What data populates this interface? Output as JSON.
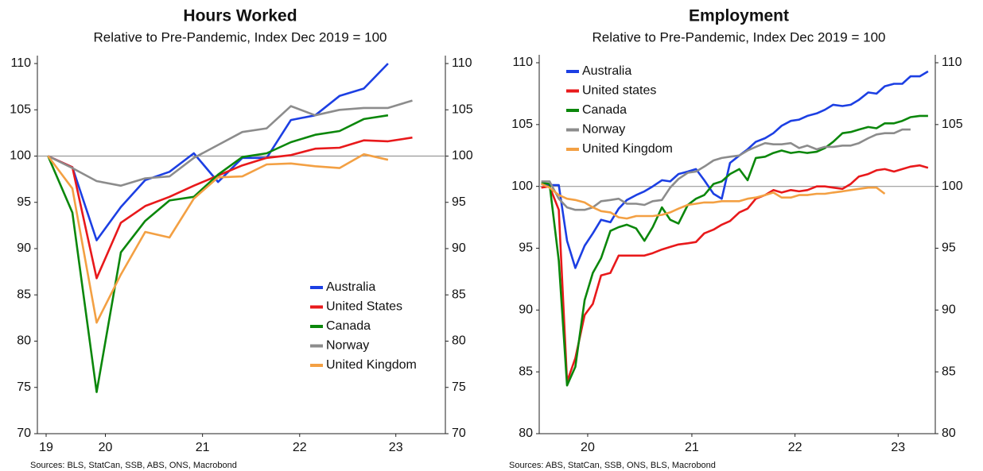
{
  "chart_data": [
    {
      "type": "line",
      "title": "Hours Worked",
      "subtitle": "Relative to Pre-Pandemic, Index Dec 2019 = 100",
      "source": "Sources: BLS, StatCan, SSB, ABS, ONS, Macrobond",
      "x": [
        2019.92,
        2020.17,
        2020.42,
        2020.67,
        2020.92,
        2021.17,
        2021.42,
        2021.67,
        2021.92,
        2022.17,
        2022.42,
        2022.67,
        2022.92,
        2023.17,
        2023.42,
        2023.67
      ],
      "xlim": [
        2019.81,
        2024.01
      ],
      "xticks": [
        {
          "value": 2019.9,
          "label": "19"
        },
        {
          "value": 2020.51,
          "label": "20"
        },
        {
          "value": 2021.51,
          "label": "21"
        },
        {
          "value": 2022.51,
          "label": "22"
        },
        {
          "value": 2023.5,
          "label": "23"
        }
      ],
      "ylim": [
        70,
        110
      ],
      "yticks": [
        70,
        75,
        80,
        85,
        90,
        95,
        100,
        105,
        110
      ],
      "y2lim": [
        70,
        110
      ],
      "y2ticks": [
        70,
        75,
        80,
        85,
        90,
        95,
        100,
        105,
        110
      ],
      "reference_line": 100,
      "legend": "lower right",
      "series": [
        {
          "name": "Australia",
          "color": "#1c3fe3",
          "values": [
            100,
            98.8,
            90.9,
            94.5,
            97.4,
            98.3,
            100.3,
            97.2,
            99.8,
            99.8,
            103.9,
            104.4,
            106.5,
            107.3,
            110.0,
            null
          ]
        },
        {
          "name": "United States",
          "color": "#e8191b",
          "values": [
            100,
            98.8,
            86.8,
            92.8,
            94.6,
            95.6,
            96.8,
            97.9,
            99.0,
            99.8,
            100.1,
            100.8,
            100.9,
            101.7,
            101.6,
            102.0
          ]
        },
        {
          "name": "Canada",
          "color": "#0b870b",
          "values": [
            100,
            93.9,
            74.5,
            89.6,
            93.0,
            95.2,
            95.6,
            98.0,
            99.9,
            100.3,
            101.5,
            102.3,
            102.7,
            104.0,
            104.4,
            null
          ]
        },
        {
          "name": "Norway",
          "color": "#8c8c8c",
          "values": [
            100,
            98.7,
            97.3,
            96.8,
            97.6,
            97.8,
            99.8,
            101.2,
            102.6,
            103.0,
            105.4,
            104.4,
            105.0,
            105.2,
            105.2,
            106.0
          ]
        },
        {
          "name": "United Kingdom",
          "color": "#f3a043",
          "values": [
            100,
            96.5,
            82.0,
            87.2,
            91.8,
            91.2,
            95.4,
            97.7,
            97.8,
            99.1,
            99.2,
            98.9,
            98.7,
            100.2,
            99.6,
            null
          ]
        }
      ]
    },
    {
      "type": "line",
      "title": "Employment",
      "subtitle": "Relative to Pre-Pandemic, Index Dec 2019 = 100",
      "source": "Sources: ABS, StatCan, SSB, ONS, BLS, Macrobond",
      "x": [
        2019.96,
        2020.04,
        2020.13,
        2020.21,
        2020.29,
        2020.38,
        2020.46,
        2020.54,
        2020.63,
        2020.71,
        2020.79,
        2020.88,
        2020.96,
        2021.04,
        2021.13,
        2021.21,
        2021.29,
        2021.38,
        2021.46,
        2021.54,
        2021.63,
        2021.71,
        2021.79,
        2021.88,
        2021.96,
        2022.04,
        2022.13,
        2022.21,
        2022.29,
        2022.38,
        2022.46,
        2022.54,
        2022.63,
        2022.71,
        2022.79,
        2022.88,
        2022.96,
        2023.04,
        2023.13,
        2023.21,
        2023.29,
        2023.38,
        2023.46,
        2023.54,
        2023.63,
        2023.71
      ],
      "xlim": [
        2019.94,
        2023.78
      ],
      "xticks": [
        {
          "value": 2020.41,
          "label": "20"
        },
        {
          "value": 2021.42,
          "label": "21"
        },
        {
          "value": 2022.42,
          "label": "22"
        },
        {
          "value": 2023.42,
          "label": "23"
        }
      ],
      "ylim": [
        80,
        110
      ],
      "yticks": [
        80,
        85,
        90,
        95,
        100,
        105,
        110
      ],
      "y2lim": [
        80,
        110
      ],
      "y2ticks": [
        80,
        85,
        90,
        95,
        100,
        105,
        110
      ],
      "reference_line": 100,
      "legend": "upper left",
      "series": [
        {
          "name": "Australia",
          "color": "#1c3fe3",
          "values": [
            100.2,
            100.1,
            100.1,
            95.6,
            93.4,
            95.2,
            96.2,
            97.3,
            97.1,
            98.2,
            98.9,
            99.3,
            99.6,
            100.0,
            100.5,
            100.4,
            101.0,
            101.2,
            101.4,
            100.5,
            99.4,
            99.0,
            101.9,
            102.5,
            103.0,
            103.6,
            103.9,
            104.3,
            104.9,
            105.3,
            105.4,
            105.7,
            105.9,
            106.2,
            106.6,
            106.5,
            106.6,
            107.0,
            107.6,
            107.5,
            108.1,
            108.3,
            108.3,
            108.9,
            108.9,
            109.3
          ]
        },
        {
          "name": "United states",
          "color": "#e8191b",
          "values": [
            99.9,
            100.0,
            98.1,
            84.2,
            86.1,
            89.6,
            90.5,
            92.8,
            93.0,
            94.4,
            94.4,
            94.4,
            94.4,
            94.6,
            94.9,
            95.1,
            95.3,
            95.4,
            95.5,
            96.2,
            96.5,
            96.9,
            97.2,
            97.9,
            98.2,
            99.0,
            99.3,
            99.7,
            99.5,
            99.7,
            99.6,
            99.7,
            100.0,
            100.0,
            99.9,
            99.8,
            100.2,
            100.8,
            101.0,
            101.3,
            101.4,
            101.2,
            101.4,
            101.6,
            101.7,
            101.5
          ]
        },
        {
          "name": "Canada",
          "color": "#0b870b",
          "values": [
            100.3,
            100.2,
            94.0,
            83.9,
            85.4,
            90.8,
            93.0,
            94.2,
            96.4,
            96.7,
            96.9,
            96.6,
            95.6,
            96.7,
            98.3,
            97.3,
            97.0,
            98.5,
            99.0,
            99.3,
            100.2,
            100.4,
            101.0,
            101.4,
            100.5,
            102.3,
            102.4,
            102.7,
            102.9,
            102.7,
            102.8,
            102.7,
            102.8,
            103.1,
            103.6,
            104.3,
            104.4,
            104.6,
            104.8,
            104.7,
            105.1,
            105.1,
            105.3,
            105.6,
            105.7,
            105.7
          ]
        },
        {
          "name": "Norway",
          "color": "#8c8c8c",
          "values": [
            100.4,
            100.4,
            99.0,
            98.3,
            98.1,
            98.1,
            98.3,
            98.8,
            98.9,
            99.0,
            98.6,
            98.6,
            98.5,
            98.8,
            98.9,
            99.9,
            100.6,
            101.1,
            101.2,
            101.6,
            102.1,
            102.3,
            102.4,
            102.5,
            102.9,
            103.2,
            103.5,
            103.4,
            103.4,
            103.5,
            103.1,
            103.3,
            103.0,
            103.2,
            103.2,
            103.3,
            103.3,
            103.5,
            103.9,
            104.2,
            104.3,
            104.3,
            104.6,
            104.6,
            null,
            null
          ]
        },
        {
          "name": "United Kingdom",
          "color": "#f3a043",
          "values": [
            100.2,
            99.9,
            99.3,
            99.0,
            98.9,
            98.7,
            98.3,
            98.0,
            97.9,
            97.5,
            97.4,
            97.6,
            97.6,
            97.6,
            97.7,
            97.9,
            98.2,
            98.5,
            98.6,
            98.7,
            98.7,
            98.8,
            98.8,
            98.8,
            99.0,
            99.1,
            99.3,
            99.5,
            99.1,
            99.1,
            99.3,
            99.3,
            99.4,
            99.4,
            99.5,
            99.6,
            99.7,
            99.8,
            99.9,
            99.9,
            99.4,
            null,
            null,
            null,
            null,
            null
          ]
        }
      ]
    }
  ]
}
